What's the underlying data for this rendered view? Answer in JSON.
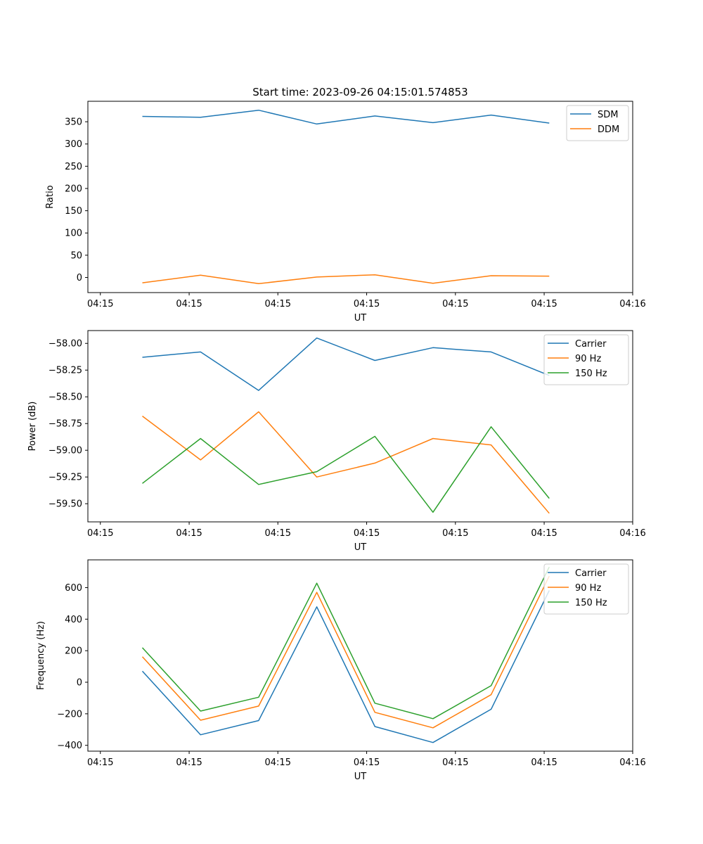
{
  "chart_data": [
    {
      "type": "line",
      "title": "Start time: 2023-09-26 04:15:01.574853",
      "xlabel": "UT",
      "ylabel": "Ratio",
      "x_tick_labels": [
        "04:15",
        "04:15",
        "04:15",
        "04:15",
        "04:15",
        "04:15",
        "04:16"
      ],
      "yticks": [
        0,
        50,
        100,
        150,
        200,
        250,
        300,
        350
      ],
      "ylim": [
        -34,
        396
      ],
      "legend_position": "upper-right",
      "series": [
        {
          "name": "SDM",
          "color": "#1f77b4",
          "values": [
            362,
            360,
            376,
            345,
            363,
            348,
            365,
            347
          ]
        },
        {
          "name": "DDM",
          "color": "#ff7f0e",
          "values": [
            -12,
            5,
            -14,
            1,
            6,
            -13,
            4,
            3
          ]
        }
      ]
    },
    {
      "type": "line",
      "title": "",
      "xlabel": "UT",
      "ylabel": "Power (dB)",
      "x_tick_labels": [
        "04:15",
        "04:15",
        "04:15",
        "04:15",
        "04:15",
        "04:15",
        "04:16"
      ],
      "yticks": [
        -59.5,
        -59.25,
        -59.0,
        -58.75,
        -58.5,
        -58.25,
        -58.0
      ],
      "ytick_labels": [
        "−59.50",
        "−59.25",
        "−59.00",
        "−58.75",
        "−58.50",
        "−58.25",
        "−58.00"
      ],
      "ylim": [
        -59.67,
        -57.88
      ],
      "legend_position": "upper-right",
      "series": [
        {
          "name": "Carrier",
          "color": "#1f77b4",
          "values": [
            -58.13,
            -58.08,
            -58.44,
            -57.95,
            -58.16,
            -58.04,
            -58.08,
            -58.3
          ]
        },
        {
          "name": "90 Hz",
          "color": "#ff7f0e",
          "values": [
            -58.68,
            -59.09,
            -58.64,
            -59.25,
            -59.12,
            -58.89,
            -58.95,
            -59.59
          ]
        },
        {
          "name": "150 Hz",
          "color": "#2ca02c",
          "values": [
            -59.31,
            -58.89,
            -59.32,
            -59.2,
            -58.87,
            -59.58,
            -58.78,
            -59.45
          ]
        }
      ]
    },
    {
      "type": "line",
      "title": "",
      "xlabel": "UT",
      "ylabel": "Frequency (Hz)",
      "x_tick_labels": [
        "04:15",
        "04:15",
        "04:15",
        "04:15",
        "04:15",
        "04:15",
        "04:16"
      ],
      "yticks": [
        -400,
        -200,
        0,
        200,
        400,
        600
      ],
      "ytick_labels": [
        "−400",
        "−200",
        "0",
        "200",
        "400",
        "600"
      ],
      "ylim": [
        -437,
        776
      ],
      "legend_position": "upper-right",
      "series": [
        {
          "name": "Carrier",
          "color": "#1f77b4",
          "values": [
            70,
            -333,
            -243,
            478,
            -281,
            -382,
            -171,
            582
          ]
        },
        {
          "name": "90 Hz",
          "color": "#ff7f0e",
          "values": [
            162,
            -241,
            -151,
            570,
            -191,
            -289,
            -79,
            673
          ]
        },
        {
          "name": "150 Hz",
          "color": "#2ca02c",
          "values": [
            219,
            -183,
            -95,
            628,
            -133,
            -231,
            -22,
            731
          ]
        }
      ]
    }
  ]
}
